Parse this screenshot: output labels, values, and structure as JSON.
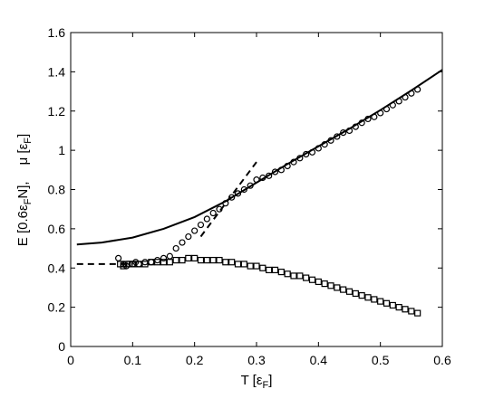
{
  "chart_data": {
    "type": "scatter",
    "title": "",
    "xlabel": {
      "main": "T [",
      "symbol": "ε",
      "sub": "F",
      "end": "]"
    },
    "ylabel": {
      "main": "E [0.6",
      "symbol": "ε",
      "sub": "F",
      "end": "N],",
      "second": "μ [",
      "second_symbol": "ε",
      "second_sub": "F",
      "second_end": "]"
    },
    "xlim": [
      0,
      0.6
    ],
    "ylim": [
      0,
      1.6
    ],
    "xticks": [
      "0",
      "0.1",
      "0.2",
      "0.3",
      "0.4",
      "0.5",
      "0.6"
    ],
    "yticks": [
      "0",
      "0.2",
      "0.4",
      "0.6",
      "0.8",
      "1",
      "1.2",
      "1.4",
      "1.6"
    ],
    "grid": false,
    "series": [
      {
        "kind": "line",
        "style": "solid",
        "x": [
          0.01,
          0.05,
          0.1,
          0.15,
          0.2,
          0.25,
          0.3,
          0.35,
          0.4,
          0.45,
          0.5,
          0.55,
          0.6
        ],
        "y": [
          0.52,
          0.53,
          0.555,
          0.6,
          0.66,
          0.74,
          0.835,
          0.93,
          1.02,
          1.11,
          1.205,
          1.305,
          1.41
        ]
      },
      {
        "kind": "line",
        "style": "dashed",
        "x": [
          0.01,
          0.05,
          0.08,
          0.1
        ],
        "y": [
          0.42,
          0.42,
          0.42,
          0.42
        ]
      },
      {
        "kind": "line",
        "style": "dashed",
        "x": [
          0.21,
          0.3
        ],
        "y": [
          0.56,
          0.94
        ]
      },
      {
        "kind": "markers",
        "marker": "circle",
        "x": [
          0.077,
          0.085,
          0.09,
          0.1,
          0.105,
          0.11,
          0.12,
          0.13,
          0.14,
          0.15,
          0.16,
          0.17,
          0.18,
          0.19,
          0.2,
          0.21,
          0.22,
          0.23,
          0.24,
          0.25,
          0.26,
          0.27,
          0.28,
          0.29,
          0.3,
          0.31,
          0.32,
          0.33,
          0.34,
          0.35,
          0.36,
          0.37,
          0.38,
          0.39,
          0.4,
          0.41,
          0.42,
          0.43,
          0.44,
          0.45,
          0.46,
          0.47,
          0.48,
          0.49,
          0.5,
          0.51,
          0.52,
          0.53,
          0.54,
          0.55,
          0.56
        ],
        "y": [
          0.45,
          0.42,
          0.41,
          0.42,
          0.43,
          0.42,
          0.43,
          0.43,
          0.44,
          0.45,
          0.46,
          0.5,
          0.53,
          0.56,
          0.59,
          0.62,
          0.65,
          0.68,
          0.7,
          0.73,
          0.76,
          0.78,
          0.8,
          0.82,
          0.85,
          0.86,
          0.87,
          0.89,
          0.9,
          0.92,
          0.94,
          0.96,
          0.98,
          0.99,
          1.01,
          1.03,
          1.05,
          1.07,
          1.09,
          1.1,
          1.12,
          1.14,
          1.16,
          1.17,
          1.19,
          1.21,
          1.23,
          1.25,
          1.27,
          1.29,
          1.31
        ]
      },
      {
        "kind": "markers",
        "marker": "square",
        "x": [
          0.08,
          0.085,
          0.09,
          0.095,
          0.1,
          0.11,
          0.12,
          0.13,
          0.14,
          0.15,
          0.16,
          0.17,
          0.18,
          0.19,
          0.2,
          0.21,
          0.22,
          0.23,
          0.24,
          0.25,
          0.26,
          0.27,
          0.28,
          0.29,
          0.3,
          0.31,
          0.32,
          0.33,
          0.34,
          0.35,
          0.36,
          0.37,
          0.38,
          0.39,
          0.4,
          0.41,
          0.42,
          0.43,
          0.44,
          0.45,
          0.46,
          0.47,
          0.48,
          0.49,
          0.5,
          0.51,
          0.52,
          0.53,
          0.54,
          0.55,
          0.56
        ],
        "y": [
          0.42,
          0.41,
          0.42,
          0.42,
          0.42,
          0.42,
          0.42,
          0.43,
          0.43,
          0.43,
          0.43,
          0.44,
          0.44,
          0.45,
          0.45,
          0.44,
          0.44,
          0.44,
          0.44,
          0.43,
          0.43,
          0.42,
          0.42,
          0.41,
          0.41,
          0.4,
          0.39,
          0.39,
          0.38,
          0.37,
          0.36,
          0.36,
          0.35,
          0.34,
          0.33,
          0.32,
          0.31,
          0.3,
          0.29,
          0.28,
          0.27,
          0.26,
          0.25,
          0.24,
          0.23,
          0.22,
          0.21,
          0.2,
          0.19,
          0.18,
          0.17
        ]
      }
    ]
  }
}
